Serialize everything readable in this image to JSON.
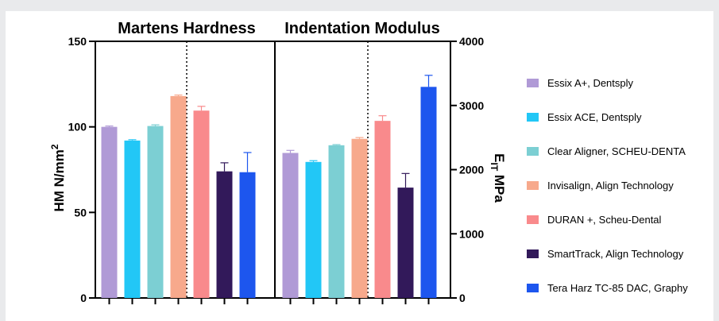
{
  "chart_data": {
    "type": "bar",
    "panels": [
      {
        "title": "Martens Hardness",
        "ylabel_main": "HM N/mm",
        "ylabel_sup": "2",
        "ylim": [
          0,
          150
        ],
        "yticks": [
          "0",
          "50",
          "100",
          "150"
        ],
        "values": [
          100,
          92,
          100.5,
          118,
          109.5,
          74,
          73.5
        ],
        "errors": [
          0.5,
          0.5,
          0.7,
          0.6,
          2.5,
          5,
          11.5
        ]
      },
      {
        "title": "Indentation Modulus",
        "ylabel_main": "E",
        "ylabel_sub": "IT",
        "ylabel_rest": " MPa",
        "ylim": [
          0,
          4000
        ],
        "yticks": [
          "0",
          "1000",
          "2000",
          "3000",
          "4000"
        ],
        "values": [
          2260,
          2120,
          2380,
          2480,
          2760,
          1720,
          3290
        ],
        "errors": [
          40,
          20,
          10,
          20,
          80,
          220,
          180
        ]
      }
    ],
    "series": [
      {
        "name": "Essix A+, Dentsply",
        "color": "#b09ad6"
      },
      {
        "name": "Essix ACE, Dentsply",
        "color": "#22c7f6"
      },
      {
        "name": "Clear Aligner, SCHEU-DENTA",
        "color": "#7ccfd3"
      },
      {
        "name": "Invisalign, Align Technology",
        "color": "#f7a98c"
      },
      {
        "name": "DURAN +, Scheu-Dental",
        "color": "#f98a8c"
      },
      {
        "name": "SmartTrack, Align Technology",
        "color": "#32195a"
      },
      {
        "name": "Tera Harz TC-85 DAC, Graphy",
        "color": "#1d56ee"
      }
    ],
    "legend_position": "right",
    "grid": false
  }
}
